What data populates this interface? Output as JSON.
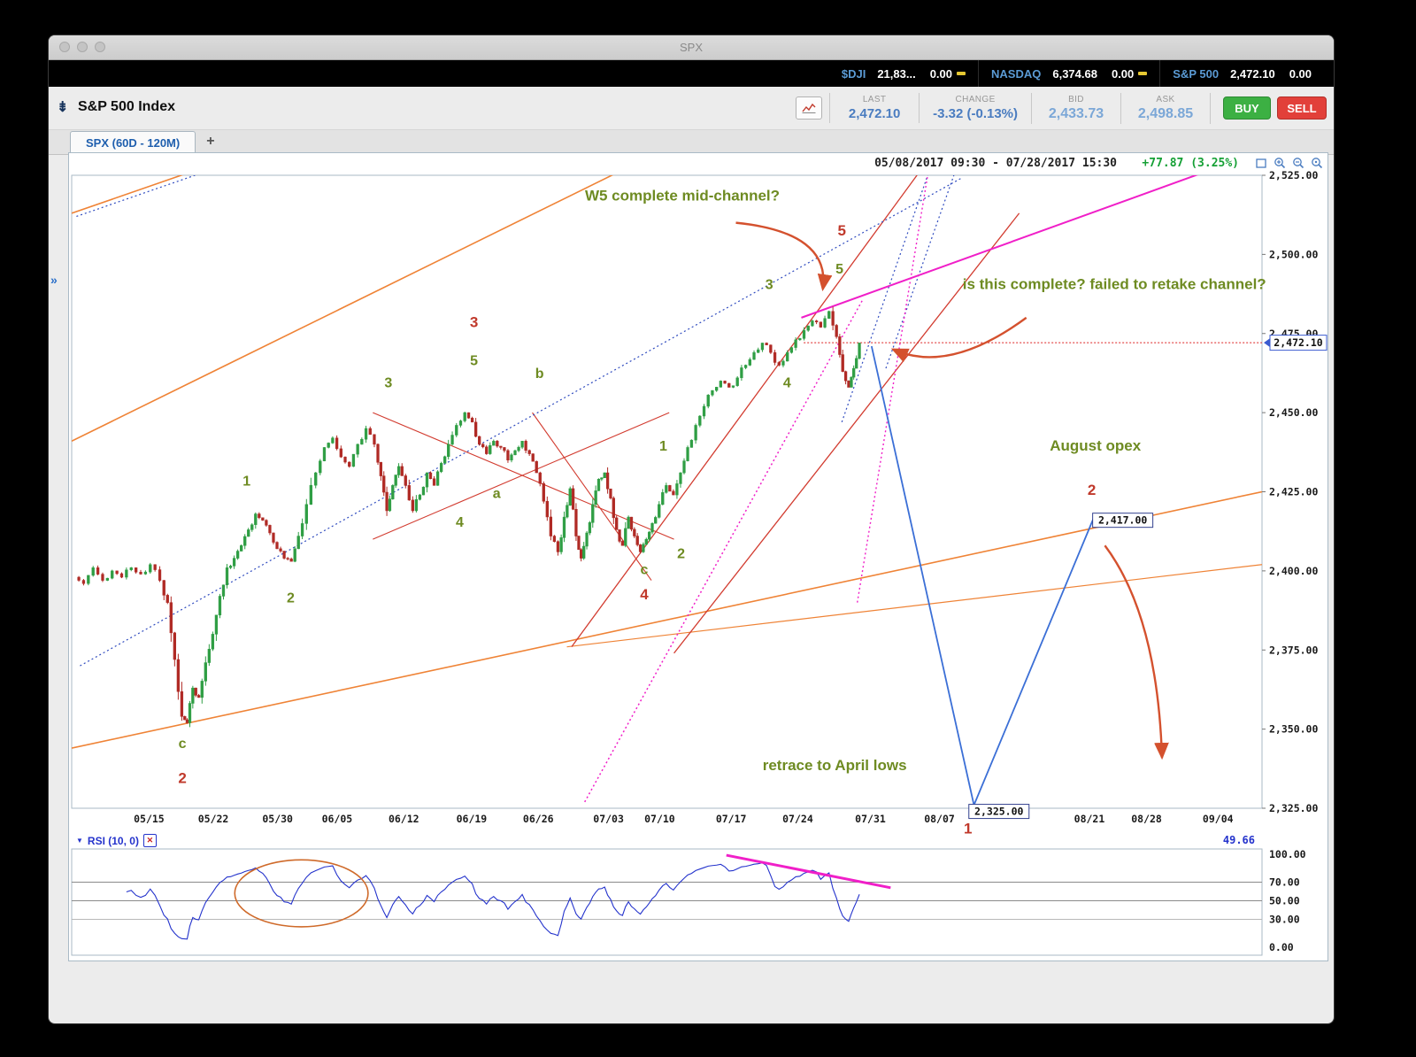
{
  "window": {
    "title": "SPX"
  },
  "ticker_bar": {
    "items": [
      {
        "symbol": "$DJI",
        "value": "21,83...",
        "change": "0.00"
      },
      {
        "symbol": "NASDAQ",
        "value": "6,374.68",
        "change": "0.00"
      },
      {
        "symbol": "S&P 500",
        "value": "2,472.10",
        "change": "0.00"
      }
    ]
  },
  "quote_header": {
    "collapse_icon": "⇟",
    "title": "S&P 500 Index",
    "fields": [
      {
        "label": "LAST",
        "value": "2,472.10"
      },
      {
        "label": "CHANGE",
        "value": "-3.32 (-0.13%)"
      },
      {
        "label": "BID",
        "value": "2,433.73"
      },
      {
        "label": "ASK",
        "value": "2,498.85"
      }
    ],
    "buy_label": "BUY",
    "sell_label": "SELL"
  },
  "tabs": {
    "active_label": "SPX (60D - 120M)",
    "add_label": "+"
  },
  "chart": {
    "range_label": "05/08/2017 09:30 - 07/28/2017 15:30",
    "change_label": "+77.87 (3.25%)",
    "expand_handle": "»"
  },
  "chart_data": {
    "type": "candlestick",
    "symbol": "SPX",
    "timeframe": "60 day, 120 minute bars",
    "last_price": 2472.1,
    "last_price_label": "2,472.10",
    "colors": {
      "candle_up": "#2f9e44",
      "candle_down": "#b02a25",
      "frame": "#a9bac6",
      "arrow": "#d4512e",
      "annotation_green": "#6e8b22",
      "annotation_red": "#c0392b",
      "magenta": "#f01fc8",
      "projection_blue": "#3b6fd6"
    },
    "y_axis": {
      "min": 2325,
      "max": 2525,
      "ticks": [
        [
          2525,
          "2,525.00"
        ],
        [
          2500,
          "2,500.00"
        ],
        [
          2475,
          "2,475.00"
        ],
        [
          2450,
          "2,450.00"
        ],
        [
          2425,
          "2,425.00"
        ],
        [
          2400,
          "2,400.00"
        ],
        [
          2375,
          "2,375.00"
        ],
        [
          2350,
          "2,350.00"
        ],
        [
          2325,
          "2,325.00"
        ]
      ]
    },
    "x_axis": [
      [
        "05/15",
        0.065
      ],
      [
        "05/22",
        0.119
      ],
      [
        "05/30",
        0.173
      ],
      [
        "06/05",
        0.223
      ],
      [
        "06/12",
        0.279
      ],
      [
        "06/19",
        0.336
      ],
      [
        "06/26",
        0.392
      ],
      [
        "07/03",
        0.451
      ],
      [
        "07/10",
        0.494
      ],
      [
        "07/17",
        0.554
      ],
      [
        "07/24",
        0.61
      ],
      [
        "07/31",
        0.671
      ],
      [
        "08/07",
        0.729
      ],
      [
        "08/21",
        0.855
      ],
      [
        "08/28",
        0.903
      ],
      [
        "09/04",
        0.963
      ]
    ],
    "price_path": [
      [
        0.004,
        2398
      ],
      [
        0.012,
        2396
      ],
      [
        0.02,
        2401
      ],
      [
        0.028,
        2397
      ],
      [
        0.036,
        2400
      ],
      [
        0.044,
        2398
      ],
      [
        0.052,
        2401
      ],
      [
        0.06,
        2399
      ],
      [
        0.068,
        2402
      ],
      [
        0.076,
        2397
      ],
      [
        0.082,
        2390
      ],
      [
        0.088,
        2372
      ],
      [
        0.094,
        2354
      ],
      [
        0.098,
        2352
      ],
      [
        0.103,
        2363
      ],
      [
        0.108,
        2360
      ],
      [
        0.114,
        2371
      ],
      [
        0.12,
        2380
      ],
      [
        0.126,
        2392
      ],
      [
        0.132,
        2401
      ],
      [
        0.138,
        2404
      ],
      [
        0.144,
        2408
      ],
      [
        0.15,
        2413
      ],
      [
        0.156,
        2418
      ],
      [
        0.162,
        2416
      ],
      [
        0.168,
        2412
      ],
      [
        0.174,
        2407
      ],
      [
        0.18,
        2404
      ],
      [
        0.186,
        2403
      ],
      [
        0.192,
        2411
      ],
      [
        0.199,
        2421
      ],
      [
        0.207,
        2431
      ],
      [
        0.214,
        2439
      ],
      [
        0.221,
        2442
      ],
      [
        0.228,
        2436
      ],
      [
        0.235,
        2433
      ],
      [
        0.242,
        2440
      ],
      [
        0.249,
        2445
      ],
      [
        0.256,
        2440
      ],
      [
        0.261,
        2430
      ],
      [
        0.266,
        2419
      ],
      [
        0.271,
        2427
      ],
      [
        0.276,
        2433
      ],
      [
        0.282,
        2427
      ],
      [
        0.288,
        2419
      ],
      [
        0.294,
        2424
      ],
      [
        0.3,
        2431
      ],
      [
        0.306,
        2427
      ],
      [
        0.312,
        2434
      ],
      [
        0.318,
        2440
      ],
      [
        0.325,
        2446
      ],
      [
        0.332,
        2450
      ],
      [
        0.338,
        2447
      ],
      [
        0.344,
        2440
      ],
      [
        0.35,
        2437
      ],
      [
        0.356,
        2441
      ],
      [
        0.362,
        2439
      ],
      [
        0.368,
        2435
      ],
      [
        0.374,
        2438
      ],
      [
        0.38,
        2441
      ],
      [
        0.386,
        2437
      ],
      [
        0.392,
        2431
      ],
      [
        0.398,
        2422
      ],
      [
        0.404,
        2411
      ],
      [
        0.41,
        2406
      ],
      [
        0.415,
        2417
      ],
      [
        0.42,
        2426
      ],
      [
        0.425,
        2411
      ],
      [
        0.429,
        2404
      ],
      [
        0.434,
        2412
      ],
      [
        0.439,
        2421
      ],
      [
        0.444,
        2429
      ],
      [
        0.449,
        2431
      ],
      [
        0.454,
        2423
      ],
      [
        0.459,
        2413
      ],
      [
        0.464,
        2408
      ],
      [
        0.469,
        2417
      ],
      [
        0.474,
        2411
      ],
      [
        0.479,
        2406
      ],
      [
        0.484,
        2410
      ],
      [
        0.489,
        2415
      ],
      [
        0.495,
        2421
      ],
      [
        0.501,
        2427
      ],
      [
        0.507,
        2424
      ],
      [
        0.513,
        2431
      ],
      [
        0.519,
        2439
      ],
      [
        0.526,
        2446
      ],
      [
        0.533,
        2452
      ],
      [
        0.54,
        2457
      ],
      [
        0.547,
        2460
      ],
      [
        0.554,
        2458
      ],
      [
        0.561,
        2461
      ],
      [
        0.568,
        2465
      ],
      [
        0.575,
        2469
      ],
      [
        0.582,
        2472
      ],
      [
        0.589,
        2469
      ],
      [
        0.596,
        2465
      ],
      [
        0.603,
        2469
      ],
      [
        0.61,
        2473
      ],
      [
        0.617,
        2476
      ],
      [
        0.624,
        2479
      ],
      [
        0.631,
        2477
      ],
      [
        0.638,
        2482
      ],
      [
        0.644,
        2474
      ],
      [
        0.649,
        2463
      ],
      [
        0.654,
        2458
      ],
      [
        0.658,
        2464
      ],
      [
        0.663,
        2472
      ]
    ],
    "trend_lines": [
      {
        "color": "#ef8336",
        "width": 1.6,
        "pts": [
          [
            0,
            2344
          ],
          [
            1,
            2425
          ]
        ]
      },
      {
        "color": "#ef8336",
        "width": 1.6,
        "pts": [
          [
            0,
            2441
          ],
          [
            0.47,
            2528
          ]
        ]
      },
      {
        "color": "#ef8336",
        "width": 1.6,
        "pts": [
          [
            0,
            2513
          ],
          [
            0.115,
            2528
          ]
        ]
      },
      {
        "color": "#ef8336",
        "width": 1.2,
        "pts": [
          [
            0.416,
            2376
          ],
          [
            1,
            2402
          ]
        ]
      },
      {
        "color": "#d23b2f",
        "width": 1.3,
        "pts": [
          [
            0.42,
            2376
          ],
          [
            0.714,
            2527
          ]
        ]
      },
      {
        "color": "#d23b2f",
        "width": 1.3,
        "pts": [
          [
            0.506,
            2374
          ],
          [
            0.796,
            2513
          ]
        ]
      },
      {
        "color": "#d23b2f",
        "width": 1.1,
        "pts": [
          [
            0.253,
            2450
          ],
          [
            0.506,
            2410
          ]
        ]
      },
      {
        "color": "#d23b2f",
        "width": 1.1,
        "pts": [
          [
            0.253,
            2410
          ],
          [
            0.502,
            2450
          ]
        ]
      },
      {
        "color": "#d23b2f",
        "width": 1.1,
        "pts": [
          [
            0.387,
            2450
          ],
          [
            0.487,
            2397
          ]
        ]
      },
      {
        "color": "#2f4bbf",
        "width": 1.2,
        "dash": "2 3",
        "pts": [
          [
            0.007,
            2370
          ],
          [
            0.747,
            2524
          ]
        ]
      },
      {
        "color": "#2f4bbf",
        "width": 1.2,
        "dash": "2 3",
        "pts": [
          [
            0.004,
            2512
          ],
          [
            0.119,
            2527
          ]
        ]
      },
      {
        "color": "#2f4bbf",
        "width": 1.2,
        "dash": "2 3",
        "pts": [
          [
            0.684,
            2464
          ],
          [
            0.743,
            2527
          ]
        ]
      },
      {
        "color": "#2f4bbf",
        "width": 1.2,
        "dash": "2 3",
        "pts": [
          [
            0.647,
            2447
          ],
          [
            0.721,
            2527
          ]
        ]
      },
      {
        "color": "#f01fc8",
        "width": 2,
        "pts": [
          [
            0.613,
            2480
          ],
          [
            0.959,
            2527
          ]
        ]
      },
      {
        "color": "#f01fc8",
        "width": 1.5,
        "dash": "2 3",
        "pts": [
          [
            0.431,
            2327
          ],
          [
            0.665,
            2486
          ]
        ]
      },
      {
        "color": "#f01fc8",
        "width": 1.4,
        "dash": "2 3",
        "pts": [
          [
            0.66,
            2390
          ],
          [
            0.72,
            2527
          ]
        ]
      },
      {
        "color": "#dd2121",
        "width": 1.1,
        "dash": "2 2",
        "pts": [
          [
            0.615,
            2472.1
          ],
          [
            1,
            2472.1
          ]
        ]
      }
    ],
    "projection": {
      "color": "#3b6fd6",
      "points": [
        [
          0.672,
          2471
        ],
        [
          0.758,
          2326
        ],
        [
          0.86,
          2418
        ]
      ],
      "price_labels": [
        {
          "text": "2,325.00",
          "f": 0.779,
          "price": 2324
        },
        {
          "text": "2,417.00",
          "f": 0.883,
          "price": 2416
        }
      ]
    },
    "annotations": [
      {
        "text": "W5 complete mid-channel?",
        "f": 0.513,
        "price": 2517,
        "color": "green",
        "size": 17
      },
      {
        "text": "is this complete?  failed to retake channel?",
        "f": 0.876,
        "price": 2489,
        "color": "green",
        "size": 17
      },
      {
        "text": "August opex",
        "f": 0.86,
        "price": 2438,
        "color": "green",
        "size": 17
      },
      {
        "text": "retrace to April lows",
        "f": 0.641,
        "price": 2337,
        "color": "green",
        "size": 17
      },
      {
        "text": "1",
        "f": 0.147,
        "price": 2427,
        "color": "green",
        "size": 16
      },
      {
        "text": "2",
        "f": 0.184,
        "price": 2390,
        "color": "green",
        "size": 16
      },
      {
        "text": "3",
        "f": 0.266,
        "price": 2458,
        "color": "green",
        "size": 16
      },
      {
        "text": "5",
        "f": 0.338,
        "price": 2465,
        "color": "green",
        "size": 16
      },
      {
        "text": "a",
        "f": 0.357,
        "price": 2423,
        "color": "green",
        "size": 16
      },
      {
        "text": "4",
        "f": 0.326,
        "price": 2414,
        "color": "green",
        "size": 16
      },
      {
        "text": "b",
        "f": 0.393,
        "price": 2461,
        "color": "green",
        "size": 16
      },
      {
        "text": "1",
        "f": 0.497,
        "price": 2438,
        "color": "green",
        "size": 16
      },
      {
        "text": "2",
        "f": 0.512,
        "price": 2404,
        "color": "green",
        "size": 16
      },
      {
        "text": "c",
        "f": 0.481,
        "price": 2399,
        "color": "green",
        "size": 16
      },
      {
        "text": "4",
        "f": 0.601,
        "price": 2458,
        "color": "green",
        "size": 16
      },
      {
        "text": "3",
        "f": 0.586,
        "price": 2489,
        "color": "green",
        "size": 16
      },
      {
        "text": "5",
        "f": 0.645,
        "price": 2494,
        "color": "green",
        "size": 16
      },
      {
        "text": "c",
        "f": 0.093,
        "price": 2344,
        "color": "green",
        "size": 16
      },
      {
        "text": "3",
        "f": 0.338,
        "price": 2477,
        "color": "red",
        "size": 17
      },
      {
        "text": "5",
        "f": 0.647,
        "price": 2506,
        "color": "red",
        "size": 17
      },
      {
        "text": "4",
        "f": 0.481,
        "price": 2391,
        "color": "red",
        "size": 17
      },
      {
        "text": "2",
        "f": 0.093,
        "price": 2333,
        "color": "red",
        "size": 17
      },
      {
        "text": "1",
        "f": 0.753,
        "price": 2317,
        "color": "red",
        "size": 17
      },
      {
        "text": "2",
        "f": 0.857,
        "price": 2424,
        "color": "red",
        "size": 17
      }
    ],
    "arrows": [
      {
        "from": [
          0.558,
          2510
        ],
        "ctrl": [
          0.638,
          2507
        ],
        "to": [
          0.631,
          2489
        ]
      },
      {
        "from": [
          0.802,
          2480
        ],
        "ctrl": [
          0.737,
          2462
        ],
        "to": [
          0.69,
          2470
        ]
      },
      {
        "from": [
          0.868,
          2408
        ],
        "ctrl": [
          0.912,
          2386
        ],
        "to": [
          0.916,
          2341
        ]
      }
    ],
    "rsi": {
      "indicator_label": "RSI (10, 0)",
      "value_label": "49.66",
      "period": 10,
      "levels": [
        [
          100,
          "100.00"
        ],
        [
          70,
          "70.00"
        ],
        [
          50,
          "50.00"
        ],
        [
          30,
          "30.00"
        ],
        [
          0,
          "0.00"
        ]
      ],
      "ellipse": {
        "f": 0.193,
        "v": 58,
        "rf": 0.056,
        "rv": 36
      },
      "trend_line": {
        "from": [
          0.55,
          99
        ],
        "to": [
          0.688,
          64
        ]
      }
    }
  }
}
